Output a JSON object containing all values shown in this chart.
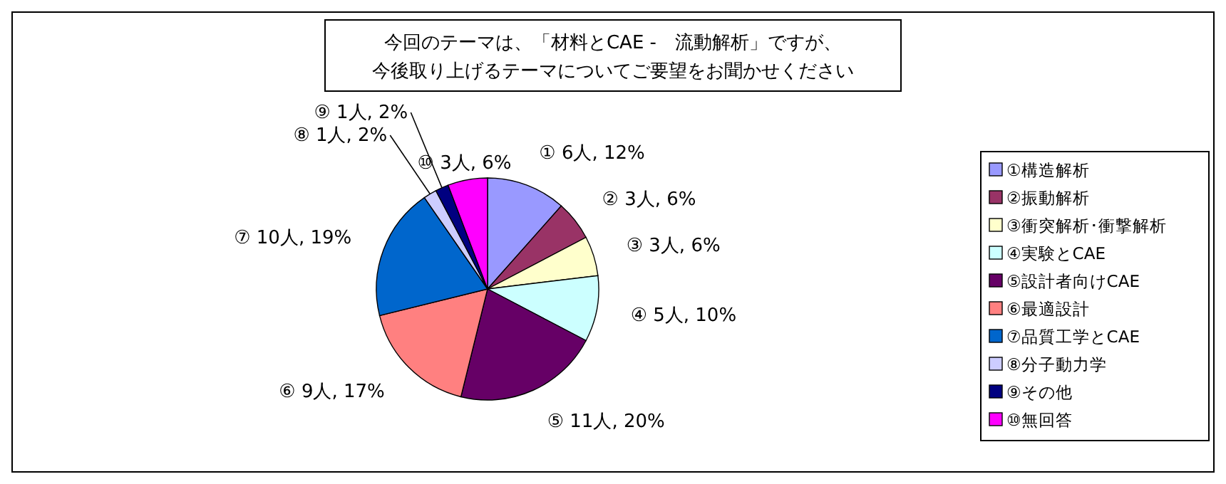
{
  "chart_data": {
    "type": "pie",
    "title": "今回のテーマは、「材料とCAE -　流動解析」ですが、",
    "subtitle": "今後取り上げるテーマについてご要望をお聞かせください",
    "categories": [
      "①構造解析",
      "②振動解析",
      "③衝突解析･衝撃解析",
      "④実験とCAE",
      "⑤設計者向けCAE",
      "⑥最適設計",
      "⑦品質工学とCAE",
      "⑧分子動力学",
      "⑨その他",
      "⑩無回答"
    ],
    "values": [
      6,
      3,
      3,
      5,
      11,
      9,
      10,
      1,
      1,
      3
    ],
    "colors": [
      "#9999ff",
      "#993366",
      "#ffffcc",
      "#ccffff",
      "#660066",
      "#ff8080",
      "#0066cc",
      "#ccccff",
      "#000080",
      "#ff00ff"
    ],
    "value_labels": [
      "① 6人, 12%",
      "② 3人, 6%",
      "③ 3人, 6%",
      "④ 5人, 10%",
      "⑤ 11人, 20%",
      "⑥ 9人, 17%",
      "⑦ 10人, 19%",
      "⑧ 1人, 2%",
      "⑨ 1人, 2%",
      "⑩ 3人, 6%"
    ],
    "legend": "right"
  }
}
